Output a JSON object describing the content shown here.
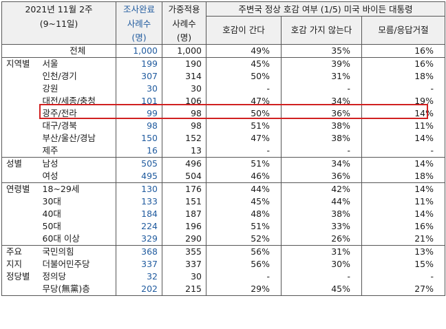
{
  "header": {
    "period_line1": "2021년 11월 2주",
    "period_line2": "(9~11일)",
    "completed_line1": "조사완료",
    "completed_line2": "사례수",
    "completed_line3": "(명)",
    "weighted_line1": "가중적용",
    "weighted_line2": "사례수",
    "weighted_line3": "(명)",
    "question": "주변국 정상 호감 여부 (1/5) 미국 바이든 대통령",
    "col_favorable": "호감이 간다",
    "col_unfavorable": "호감 가지 않는다",
    "col_dk": "모름/응답거절"
  },
  "total": {
    "label": "전체",
    "completed": "1,000",
    "weighted": "1,000",
    "favorable": "49%",
    "unfavorable": "35%",
    "dk": "16%"
  },
  "groups": [
    {
      "name": "지역별",
      "rows": [
        {
          "label": "서울",
          "completed": "199",
          "weighted": "190",
          "favorable": "45%",
          "unfavorable": "39%",
          "dk": "16%"
        },
        {
          "label": "인천/경기",
          "completed": "307",
          "weighted": "314",
          "favorable": "50%",
          "unfavorable": "31%",
          "dk": "18%"
        },
        {
          "label": "강원",
          "completed": "30",
          "weighted": "30",
          "favorable": "-",
          "unfavorable": "-",
          "dk": "-"
        },
        {
          "label": "대전/세종/충청",
          "completed": "101",
          "weighted": "106",
          "favorable": "47%",
          "unfavorable": "34%",
          "dk": "19%"
        },
        {
          "label": "광주/전라",
          "completed": "99",
          "weighted": "98",
          "favorable": "50%",
          "unfavorable": "36%",
          "dk": "14%"
        },
        {
          "label": "대구/경북",
          "completed": "98",
          "weighted": "98",
          "favorable": "51%",
          "unfavorable": "38%",
          "dk": "11%"
        },
        {
          "label": "부산/울산/경남",
          "completed": "150",
          "weighted": "152",
          "favorable": "47%",
          "unfavorable": "38%",
          "dk": "14%"
        },
        {
          "label": "제주",
          "completed": "16",
          "weighted": "13",
          "favorable": "-",
          "unfavorable": "-",
          "dk": "-"
        }
      ]
    },
    {
      "name": "성별",
      "rows": [
        {
          "label": "남성",
          "completed": "505",
          "weighted": "496",
          "favorable": "51%",
          "unfavorable": "34%",
          "dk": "14%"
        },
        {
          "label": "여성",
          "completed": "495",
          "weighted": "504",
          "favorable": "46%",
          "unfavorable": "36%",
          "dk": "18%"
        }
      ]
    },
    {
      "name": "연령별",
      "rows": [
        {
          "label": "18~29세",
          "completed": "130",
          "weighted": "176",
          "favorable": "44%",
          "unfavorable": "42%",
          "dk": "14%"
        },
        {
          "label": "30대",
          "completed": "133",
          "weighted": "151",
          "favorable": "45%",
          "unfavorable": "44%",
          "dk": "11%"
        },
        {
          "label": "40대",
          "completed": "184",
          "weighted": "187",
          "favorable": "48%",
          "unfavorable": "38%",
          "dk": "14%"
        },
        {
          "label": "50대",
          "completed": "224",
          "weighted": "196",
          "favorable": "51%",
          "unfavorable": "33%",
          "dk": "16%"
        },
        {
          "label": "60대 이상",
          "completed": "329",
          "weighted": "290",
          "favorable": "52%",
          "unfavorable": "26%",
          "dk": "21%"
        }
      ]
    },
    {
      "name_lines": [
        "주요",
        "지지",
        "정당별"
      ],
      "rows": [
        {
          "label": "국민의힘",
          "completed": "368",
          "weighted": "355",
          "favorable": "56%",
          "unfavorable": "31%",
          "dk": "13%"
        },
        {
          "label": "더불어민주당",
          "completed": "337",
          "weighted": "337",
          "favorable": "56%",
          "unfavorable": "30%",
          "dk": "15%"
        },
        {
          "label": "정의당",
          "completed": "32",
          "weighted": "30",
          "favorable": "-",
          "unfavorable": "-",
          "dk": "-"
        },
        {
          "label": "무당(無黨)층",
          "completed": "202",
          "weighted": "215",
          "favorable": "29%",
          "unfavorable": "45%",
          "dk": "27%"
        }
      ]
    }
  ]
}
